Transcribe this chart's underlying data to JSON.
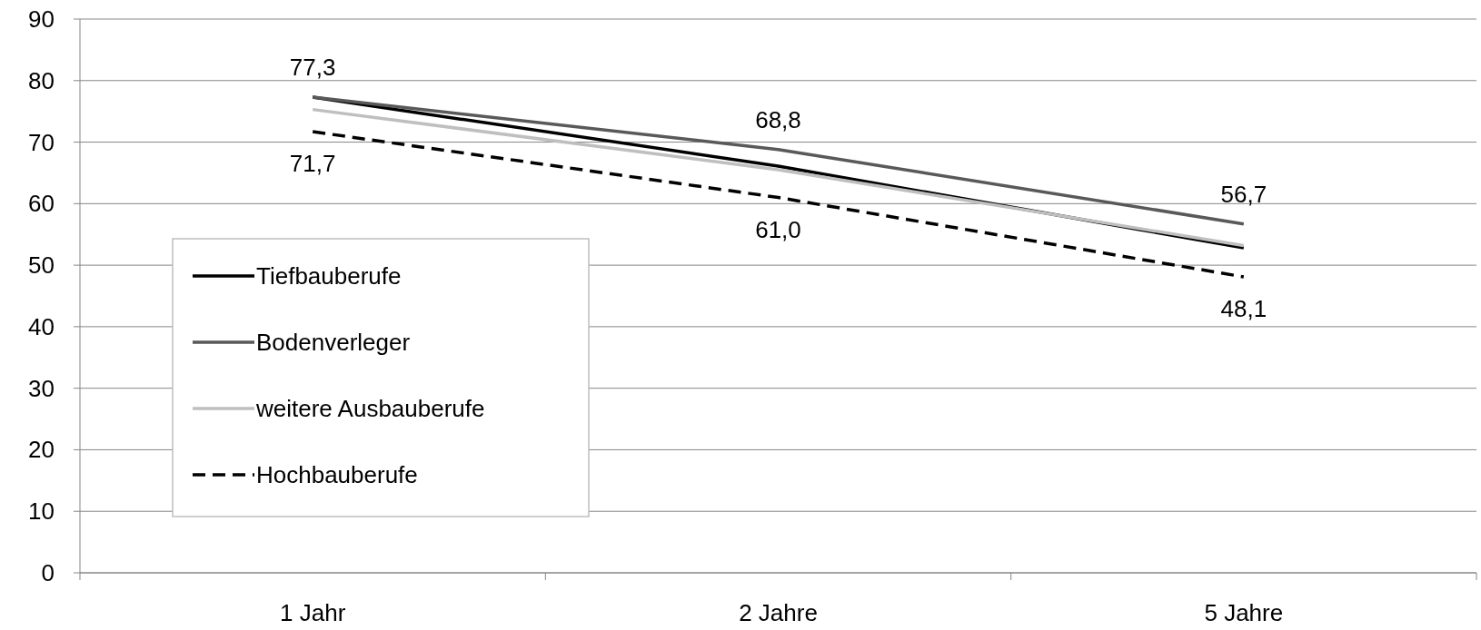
{
  "chart_data": {
    "type": "line",
    "categories": [
      "1 Jahr",
      "2 Jahre",
      "5 Jahre"
    ],
    "series": [
      {
        "name": "Tiefbauberufe",
        "color": "#000000",
        "values": [
          77.3,
          66.1,
          52.8
        ],
        "line_style": "solid"
      },
      {
        "name": "Bodenverleger",
        "color": "#595959",
        "values": [
          77.3,
          68.8,
          56.7
        ],
        "line_style": "solid",
        "value_labels": [
          "77,3",
          "68,8",
          "56,7"
        ]
      },
      {
        "name": "weitere Ausbauberufe",
        "color": "#bfbfbf",
        "values": [
          75.3,
          65.5,
          53.2
        ],
        "line_style": "solid"
      },
      {
        "name": "Hochbauberufe",
        "color": "#000000",
        "values": [
          71.7,
          61.0,
          48.1
        ],
        "line_style": "dashed",
        "value_labels": [
          "71,7",
          "61,0",
          "48,1"
        ]
      }
    ],
    "ylim": [
      0,
      90
    ],
    "yticks": [
      0,
      10,
      20,
      30,
      40,
      50,
      60,
      70,
      80,
      90
    ],
    "grid": "y",
    "legend": "left",
    "marker": "none"
  }
}
